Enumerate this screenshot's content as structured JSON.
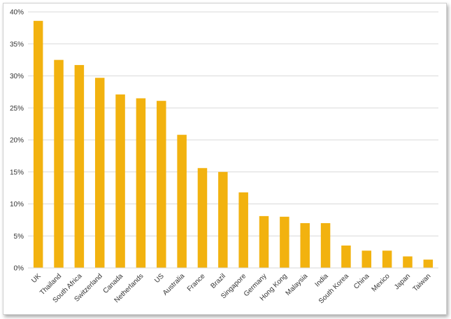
{
  "chart_data": {
    "type": "bar",
    "categories": [
      "UK",
      "Thailand",
      "South Africa",
      "Switzerland",
      "Canada",
      "Netherlands",
      "US",
      "Australia",
      "France",
      "Brazil",
      "Singapore",
      "Germany",
      "Hong Kong",
      "Malaysia",
      "India",
      "South Korea",
      "China",
      "Mexico",
      "Japan",
      "Taiwan"
    ],
    "values": [
      38.6,
      32.5,
      31.7,
      29.7,
      27.1,
      26.5,
      26.1,
      20.8,
      15.6,
      15.0,
      11.8,
      8.1,
      8.0,
      7.0,
      7.0,
      3.5,
      2.7,
      2.7,
      1.8,
      1.3
    ],
    "ylim": [
      0,
      40
    ],
    "yticks": [
      0,
      5,
      10,
      15,
      20,
      25,
      30,
      35,
      40
    ],
    "ytick_labels": [
      "0%",
      "5%",
      "10%",
      "15%",
      "20%",
      "25%",
      "30%",
      "35%",
      "40%"
    ],
    "grid": true,
    "bar_color": "#F2B20F",
    "grid_color": "#D9D9D9",
    "title": "",
    "xlabel": "",
    "ylabel": ""
  }
}
